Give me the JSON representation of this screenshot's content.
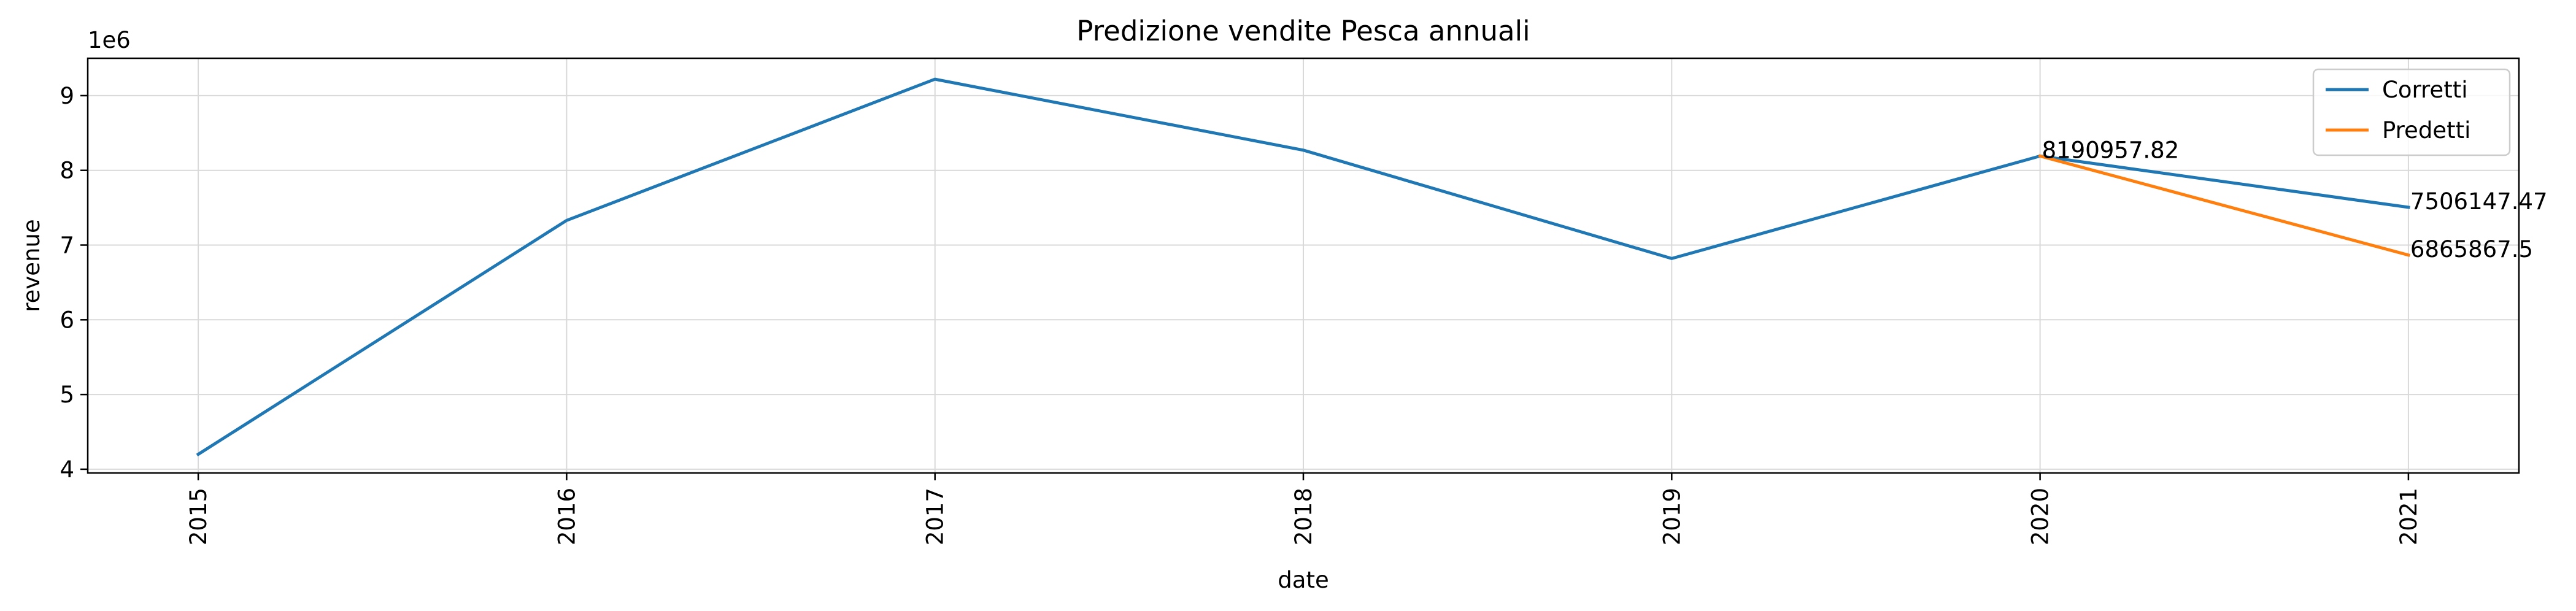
{
  "chart_data": {
    "type": "line",
    "title": "Predizione vendite Pesca annuali",
    "xlabel": "date",
    "ylabel": "revenue",
    "y_scale_label": "1e6",
    "x_ticks": [
      "2015",
      "2016",
      "2017",
      "2018",
      "2019",
      "2020",
      "2021"
    ],
    "y_ticks": [
      "4",
      "5",
      "6",
      "7",
      "8",
      "9"
    ],
    "x_range": [
      2014.7,
      2021.3
    ],
    "ylim": [
      3.95,
      9.5
    ],
    "grid": true,
    "legend_position": "top-right",
    "series": [
      {
        "name": "Corretti",
        "color": "#1f77b4",
        "x": [
          2015,
          2016,
          2017,
          2018,
          2019,
          2020,
          2021
        ],
        "y": [
          4.2,
          7.33,
          9.22,
          8.27,
          6.82,
          8.190957,
          7.50614747
        ]
      },
      {
        "name": "Predetti",
        "color": "#ff7f0e",
        "x": [
          2020,
          2021
        ],
        "y": [
          8.190957,
          6.8658675
        ]
      }
    ],
    "annotations": [
      {
        "x": 2020,
        "y": 8.190957,
        "text": "8190957.82"
      },
      {
        "x": 2020,
        "y": 8.190957,
        "text": "8190957.82"
      },
      {
        "x": 2021,
        "y": 7.50614747,
        "text": "7506147.47"
      },
      {
        "x": 2021,
        "y": 6.8658675,
        "text": "6865867.5"
      }
    ]
  }
}
